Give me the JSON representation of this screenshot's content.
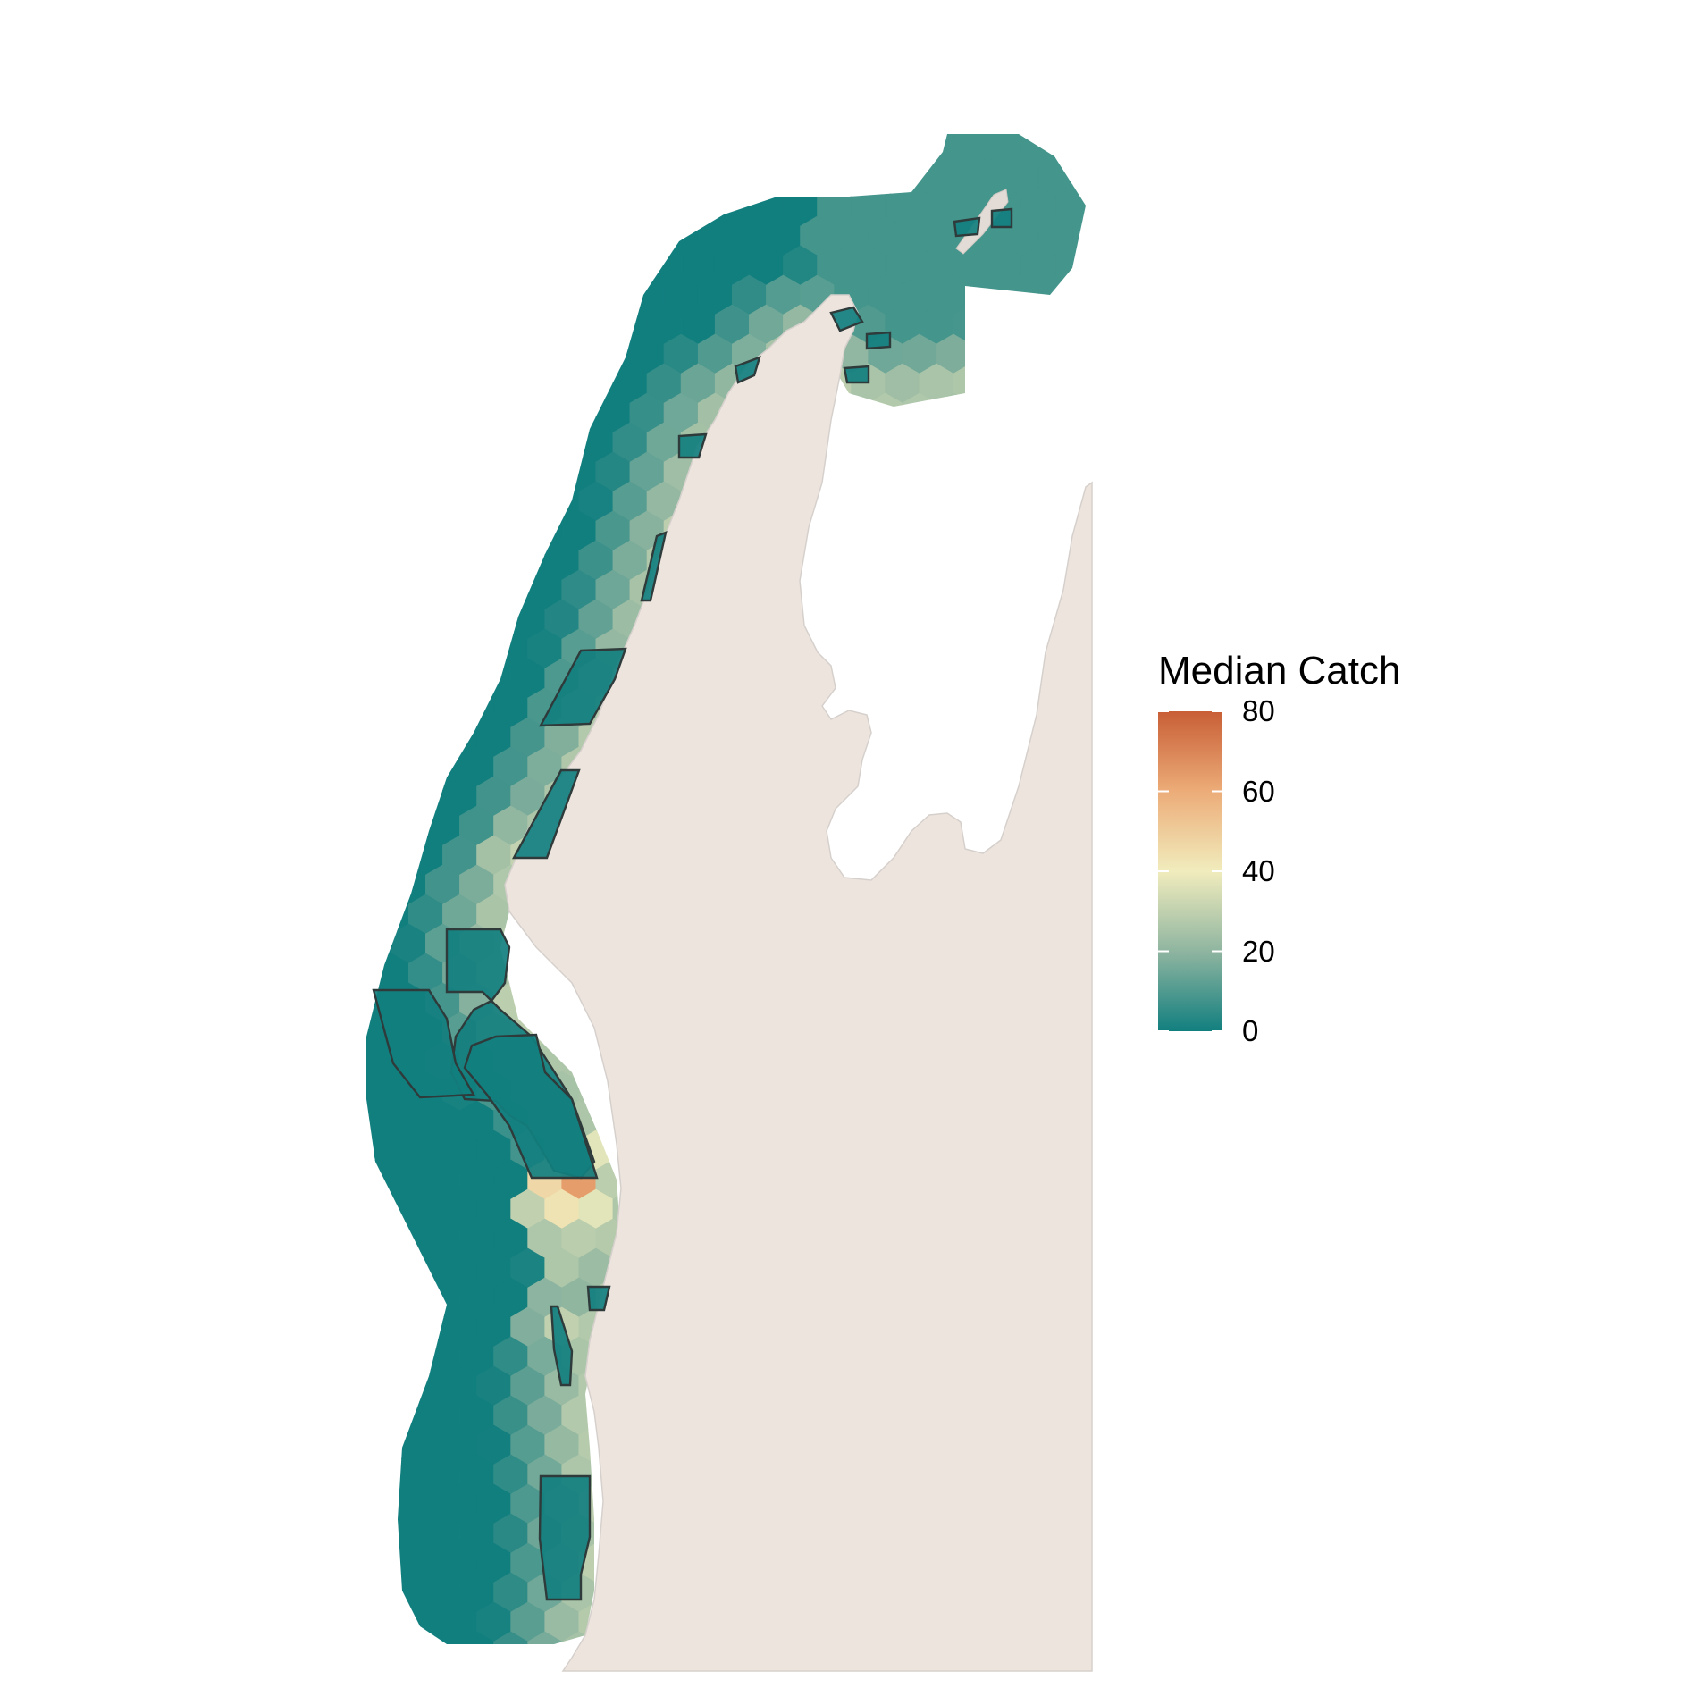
{
  "map": {
    "colors": {
      "land": "#ede4de",
      "land_outline": "#d6d0cc",
      "background": "#ffffff",
      "mpa_outline": "#2f3a3a"
    },
    "color_scale": {
      "min": 0,
      "max": 80,
      "stops": [
        {
          "value": 0,
          "color": "#127f7f"
        },
        {
          "value": 20,
          "color": "#8fb5a0"
        },
        {
          "value": 40,
          "color": "#f1ecbd"
        },
        {
          "value": 60,
          "color": "#ecac78"
        },
        {
          "value": 80,
          "color": "#c85e36"
        }
      ]
    }
  },
  "legend": {
    "title": "Median Catch",
    "ticks": [
      {
        "value": 80,
        "label": "80"
      },
      {
        "value": 60,
        "label": "60"
      },
      {
        "value": 40,
        "label": "40"
      },
      {
        "value": 20,
        "label": "20"
      },
      {
        "value": 0,
        "label": "0"
      }
    ]
  }
}
